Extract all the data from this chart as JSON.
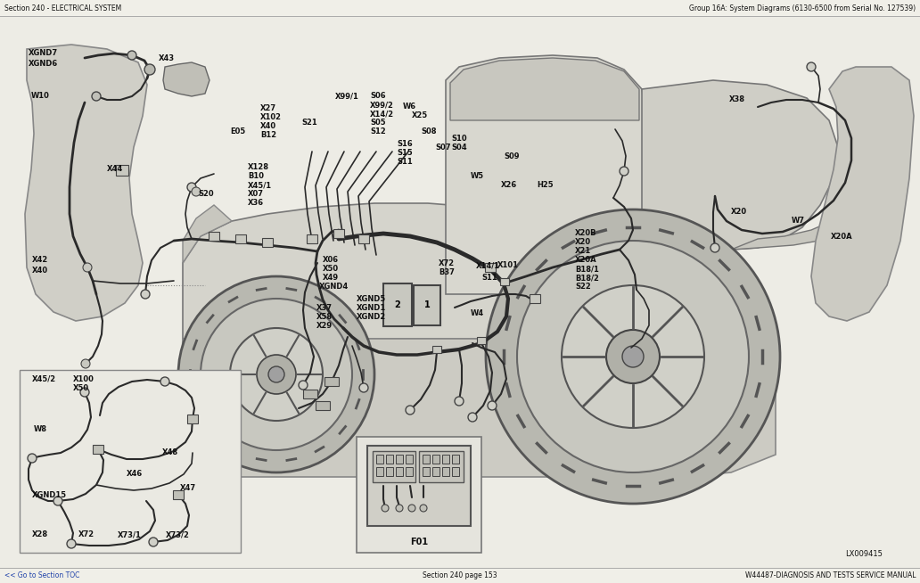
{
  "top_left_text": "Section 240 - ELECTRICAL SYSTEM",
  "top_right_text": "Group 16A: System Diagrams (6130-6500 from Serial No. 127539)",
  "bottom_left_text": "<< Go to Section TOC",
  "bottom_center_text": "Section 240 page 153",
  "bottom_right_text": "W44487-DIAGNOSIS AND TESTS SERVICE MANUAL",
  "bottom_right_corner": "LX009415",
  "bg": "#f0efe8",
  "fg": "#222222",
  "line_color": "#888888",
  "fig_width": 10.32,
  "fig_height": 6.54,
  "dpi": 100
}
